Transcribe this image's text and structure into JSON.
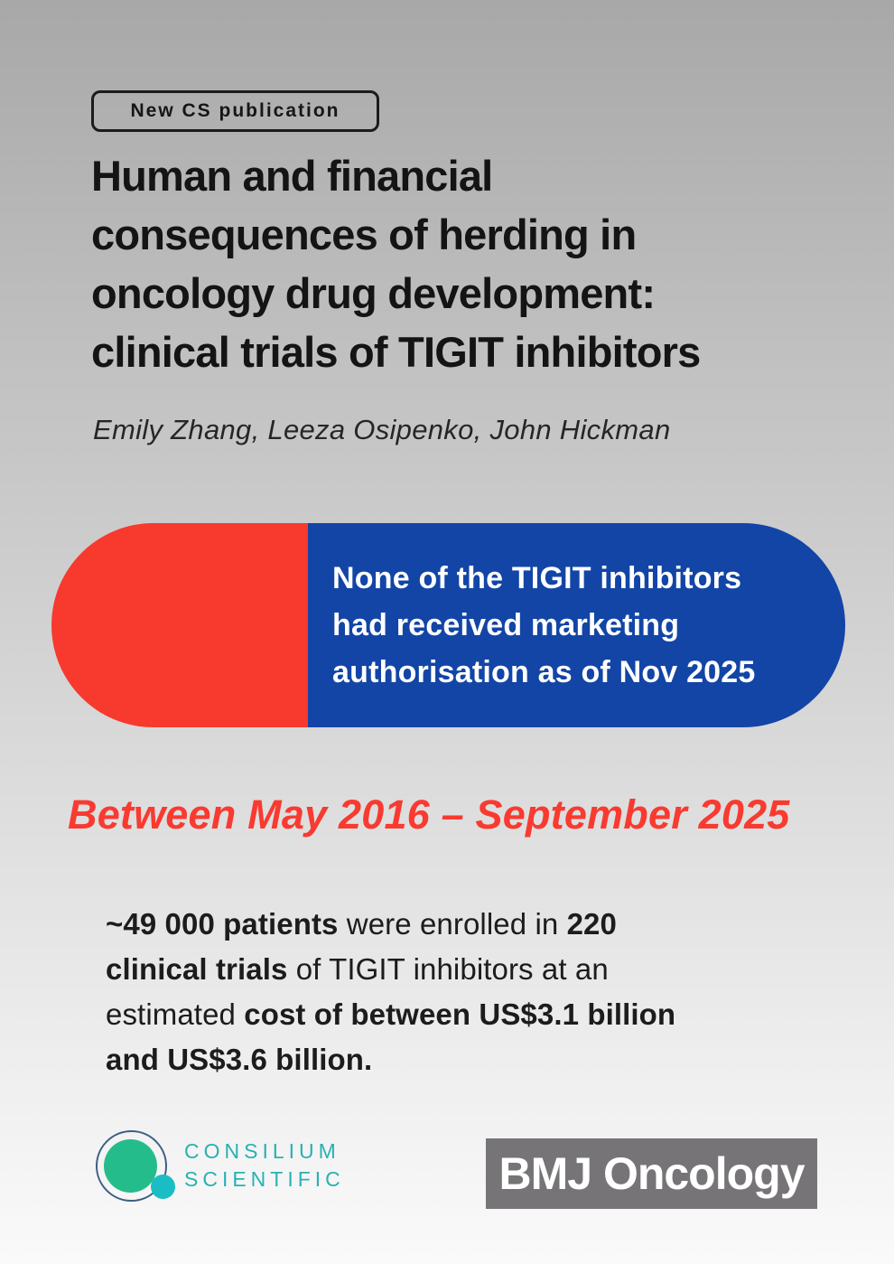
{
  "badge": {
    "label": "New CS publication"
  },
  "title": "Human and financial\nconsequences of herding in\noncology drug development:\nclinical trials of TIGIT inhibitors",
  "authors": "Emily Zhang, Leeza Osipenko, John Hickman",
  "highlight_pill": {
    "text": "None of the TIGIT inhibitors\nhad received marketing\nauthorisation as of Nov 2025",
    "red_color": "#f8392e",
    "blue_color": "#1245a6",
    "text_color": "#ffffff"
  },
  "date_range_heading": {
    "text": "Between May 2016 – September 2025",
    "color": "#f93a30"
  },
  "stats_paragraph": {
    "segments": [
      {
        "text": "~49 000 patients",
        "bold": true
      },
      {
        "text": " were enrolled in ",
        "bold": false
      },
      {
        "text": "220\nclinical trials",
        "bold": true
      },
      {
        "text": " of TIGIT inhibitors at an\nestimated ",
        "bold": false
      },
      {
        "text": "cost of between US$3.1 billion\nand US$3.6 billion.",
        "bold": true
      }
    ]
  },
  "footer": {
    "consilium_logo": {
      "line1": "CONSILIUM",
      "line2": "SCIENTIFIC",
      "text_color": "#29b1b3",
      "green_circle_color": "#25bc8b",
      "teal_circle_color": "#1abdc4",
      "ring_color": "#3e5e85"
    },
    "bmj_logo": {
      "label": "BMJ Oncology",
      "bg_color": "#767477",
      "text_color": "#ffffff"
    }
  },
  "background": {
    "top_color": "#a8a8a8",
    "bottom_color": "#fafafa"
  }
}
